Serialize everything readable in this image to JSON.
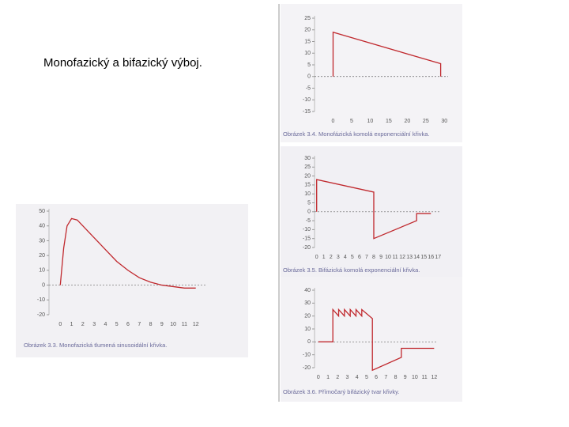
{
  "slide_text": "Monofazický  a bifazický výboj.",
  "chart_data": [
    {
      "type": "line",
      "caption": "Obrázek 3.3. Monofazická tlumená sinusoidální křivka.",
      "xlim": [
        -1,
        13
      ],
      "ylim": [
        -20,
        50
      ],
      "xticks": [
        0,
        1,
        2,
        3,
        4,
        5,
        6,
        7,
        8,
        9,
        10,
        11,
        12
      ],
      "yticks": [
        -20,
        -10,
        0,
        10,
        20,
        30,
        40,
        50
      ],
      "series": [
        {
          "color": "#c0282d",
          "x": [
            0,
            0.3,
            0.6,
            1,
            1.5,
            2,
            3,
            4,
            5,
            6,
            7,
            8,
            9,
            10,
            11,
            12
          ],
          "values": [
            0,
            25,
            40,
            45,
            44,
            40,
            32,
            24,
            16,
            10,
            5,
            2,
            0,
            -1,
            -2,
            -2
          ]
        }
      ]
    },
    {
      "type": "line",
      "caption": "Obrázek 3.4. Monofázická komolá exponenciální křivka.",
      "xlim": [
        -5,
        31
      ],
      "ylim": [
        -15,
        25
      ],
      "xticks": [
        0,
        5,
        10,
        15,
        20,
        25,
        30
      ],
      "yticks": [
        -15,
        -10,
        -5,
        0,
        5,
        10,
        15,
        20,
        25
      ],
      "series": [
        {
          "color": "#c0282d",
          "x": [
            0,
            0,
            29,
            29
          ],
          "values": [
            0,
            19,
            5.5,
            0
          ]
        }
      ]
    },
    {
      "type": "line",
      "caption": "Obrázek 3.5. Bifázická komolá exponenciální křivka.",
      "xlim": [
        -0.3,
        17.3
      ],
      "ylim": [
        -20,
        30
      ],
      "xticks": [
        0,
        1,
        2,
        3,
        4,
        5,
        6,
        7,
        8,
        9,
        10,
        11,
        12,
        13,
        14,
        15,
        16,
        17
      ],
      "yticks": [
        -20,
        -15,
        -10,
        -5,
        0,
        5,
        10,
        15,
        20,
        25,
        30
      ],
      "series": [
        {
          "color": "#c0282d",
          "x": [
            0,
            0,
            8,
            8,
            14,
            14,
            16
          ],
          "values": [
            0,
            18,
            11,
            -15,
            -5,
            -1,
            -1
          ]
        }
      ]
    },
    {
      "type": "line",
      "caption": "Obrázek 3.6. Přímočarý bifázický tvar křivky.",
      "xlim": [
        -0.4,
        12.3
      ],
      "ylim": [
        -20,
        40
      ],
      "xticks": [
        0,
        1,
        2,
        3,
        4,
        5,
        6,
        7,
        8,
        9,
        10,
        11,
        12
      ],
      "yticks": [
        -20,
        -10,
        0,
        10,
        20,
        30,
        40
      ],
      "series": [
        {
          "color": "#c0282d",
          "x": [
            0,
            1.5,
            1.5,
            2.1,
            2.1,
            2.7,
            2.7,
            3.3,
            3.3,
            3.9,
            3.9,
            4.5,
            4.5,
            5.6,
            5.6,
            8.6,
            8.6,
            12
          ],
          "values": [
            0,
            0,
            25,
            20,
            25,
            20,
            25,
            20,
            25,
            20,
            25,
            20,
            25,
            18,
            -22,
            -12,
            -5,
            -5
          ]
        }
      ]
    }
  ]
}
